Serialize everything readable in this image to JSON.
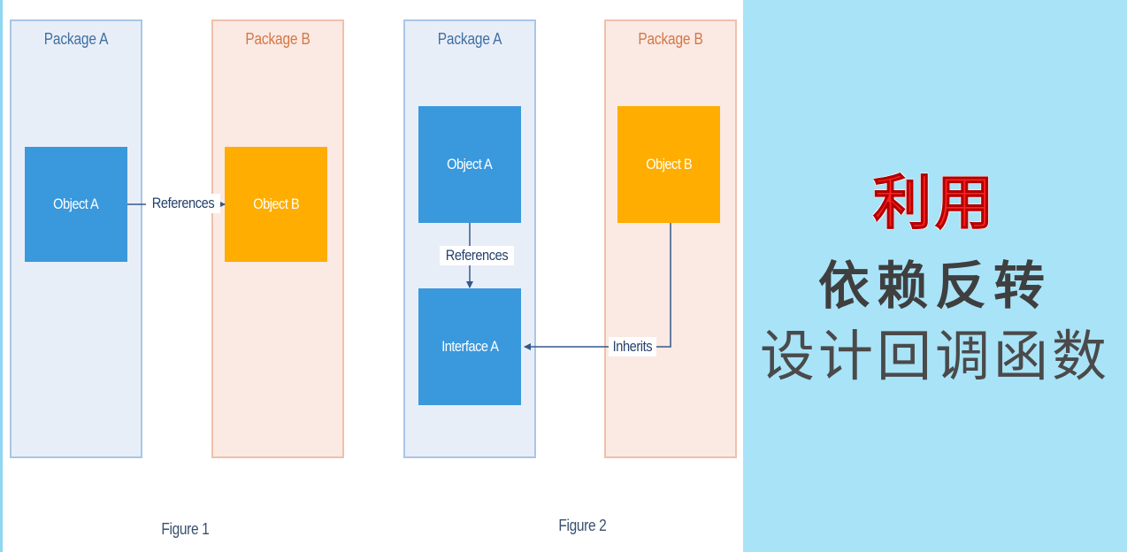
{
  "figure1": {
    "package_a_title": "Package A",
    "package_b_title": "Package B",
    "object_a_label": "Object A",
    "object_b_label": "Object B",
    "references_label": "References",
    "caption": "Figure 1"
  },
  "figure2": {
    "package_a_title": "Package A",
    "package_b_title": "Package B",
    "object_a_label": "Object A",
    "object_b_label": "Object B",
    "interface_a_label": "Interface A",
    "references_label": "References",
    "inherits_label": "Inherits",
    "caption": "Figure 2"
  },
  "banner": {
    "line1": "利用",
    "line2": "依赖反转",
    "line3": "设计回调函数"
  },
  "colors": {
    "package_a_fill": "#e8eef8",
    "package_b_fill": "#fbe9e3",
    "object_blue": "#3a98dd",
    "object_orange": "#ffad00",
    "banner_background": "#a9e3f8",
    "banner_accent": "#ff2020"
  }
}
